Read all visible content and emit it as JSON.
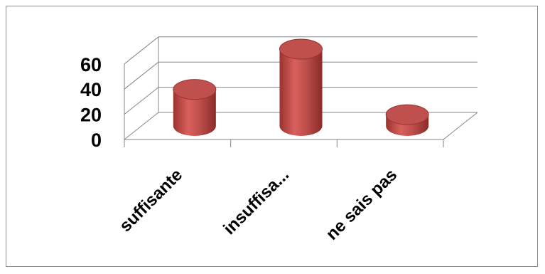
{
  "chart_data": {
    "type": "bar",
    "style": "3d-cylinder",
    "categories": [
      "suffisante",
      "insuffisa...",
      "ne sais pas"
    ],
    "values": [
      29,
      61,
      9
    ],
    "ylim": [
      0,
      60
    ],
    "yticks": [
      0,
      20,
      40,
      60
    ],
    "title": "",
    "xlabel": "",
    "ylabel": "",
    "grid": true,
    "legend": "none",
    "colors": {
      "bar": "#c0504d",
      "bar_light": "#e06a66",
      "bar_dark": "#9a3330",
      "grid": "#868686"
    }
  }
}
